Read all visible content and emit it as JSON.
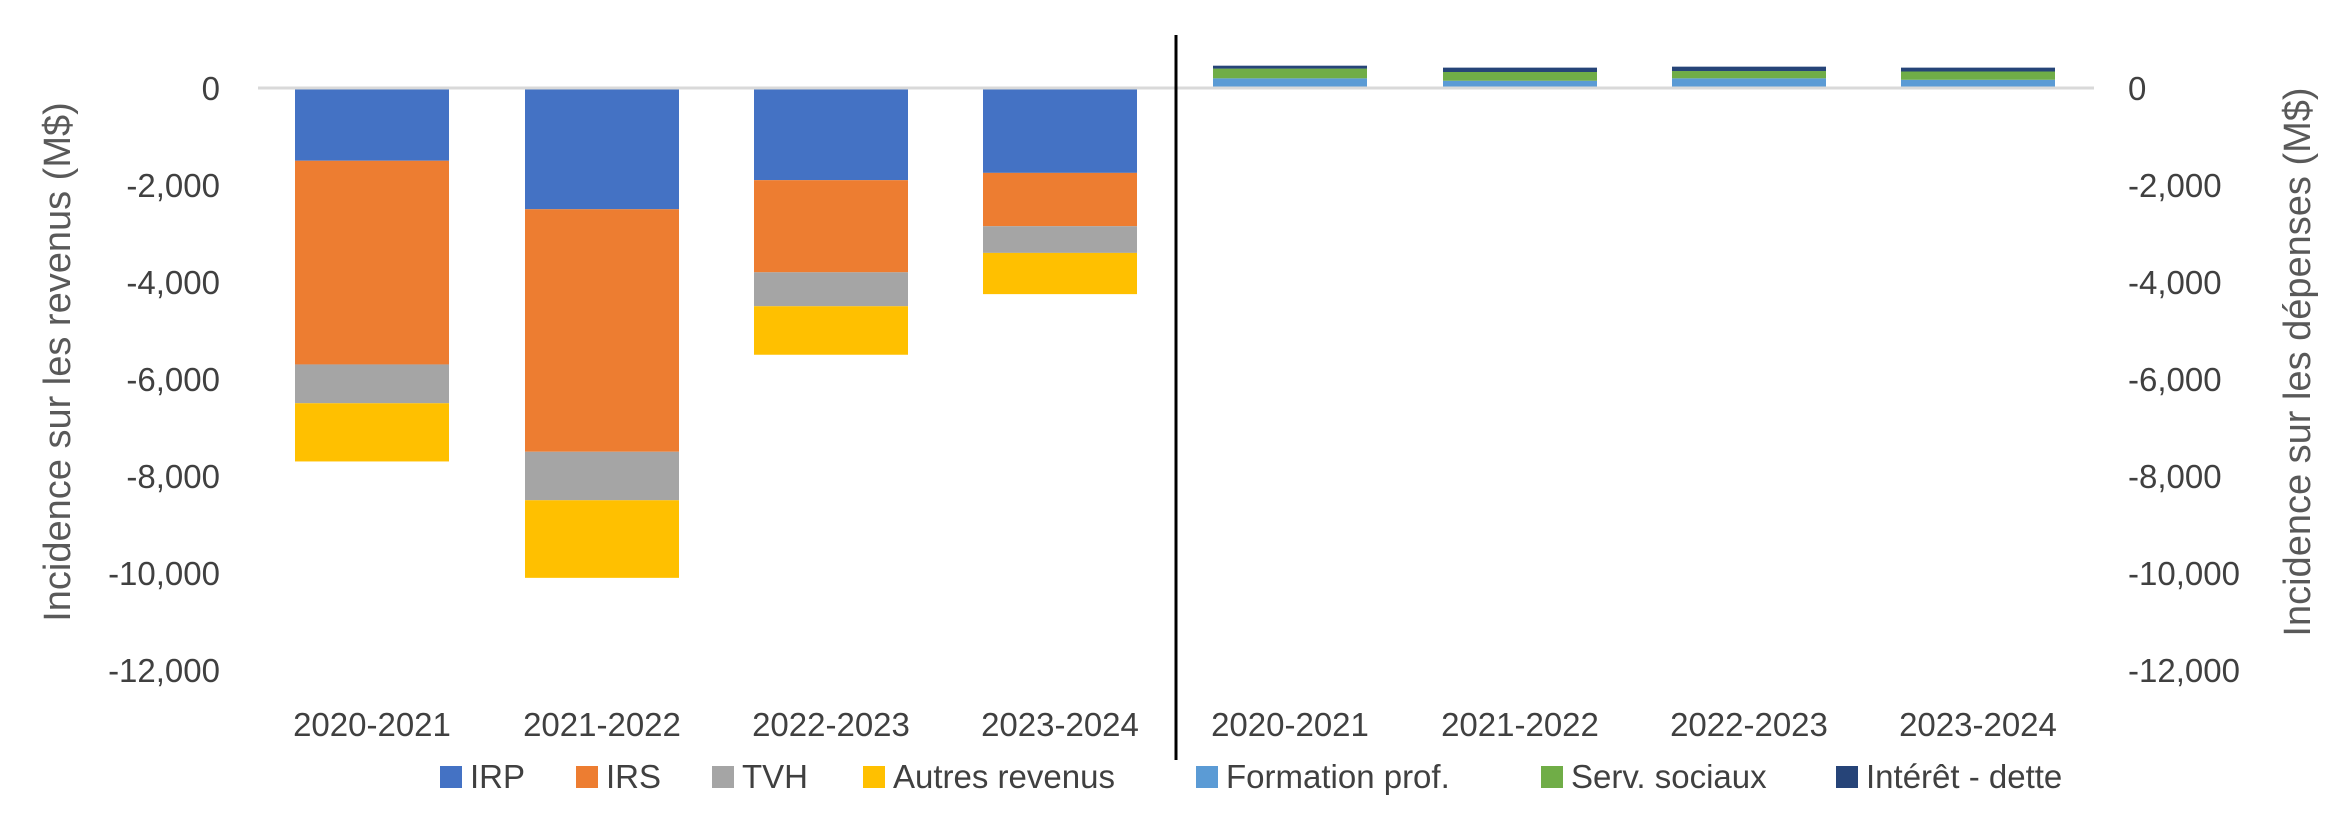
{
  "chart_data": {
    "type": "bar",
    "stacked": true,
    "grid": false,
    "legend_position": "bottom",
    "ylim": [
      -12000,
      0
    ],
    "yticks": [
      0,
      -2000,
      -4000,
      -6000,
      -8000,
      -10000,
      -12000
    ],
    "ytick_labels": [
      "0",
      "-2,000",
      "-4,000",
      "-6,000",
      "-8,000",
      "-10,000",
      "-12,000"
    ],
    "left_panel": {
      "ylabel": "Incidence sur les revenus (M$)",
      "categories": [
        "2020-2021",
        "2021-2022",
        "2022-2023",
        "2023-2024"
      ],
      "series": [
        {
          "name": "IRP",
          "color": "#4472C4",
          "values": [
            -1500,
            -2500,
            -1900,
            -1750
          ]
        },
        {
          "name": "IRS",
          "color": "#ED7D31",
          "values": [
            -4200,
            -5000,
            -1900,
            -1100
          ]
        },
        {
          "name": "TVH",
          "color": "#A5A5A5",
          "values": [
            -800,
            -1000,
            -700,
            -550
          ]
        },
        {
          "name": "Autres revenus",
          "color": "#FFC000",
          "values": [
            -1200,
            -1600,
            -1000,
            -850
          ]
        }
      ]
    },
    "right_panel": {
      "ylabel": "Incidence sur les dépenses (M$)",
      "categories": [
        "2020-2021",
        "2021-2022",
        "2022-2023",
        "2023-2024"
      ],
      "series": [
        {
          "name": "Formation prof.",
          "color": "#5B9BD5",
          "values": [
            200,
            150,
            200,
            170
          ]
        },
        {
          "name": "Serv. sociaux",
          "color": "#70AD47",
          "values": [
            200,
            180,
            150,
            170
          ]
        },
        {
          "name": "Intérêt - dette",
          "color": "#264478",
          "values": [
            60,
            90,
            90,
            80
          ]
        }
      ]
    },
    "legend": [
      "IRP",
      "IRS",
      "TVH",
      "Autres revenus",
      "Formation prof.",
      "Serv. sociaux",
      "Intérêt - dette"
    ]
  }
}
